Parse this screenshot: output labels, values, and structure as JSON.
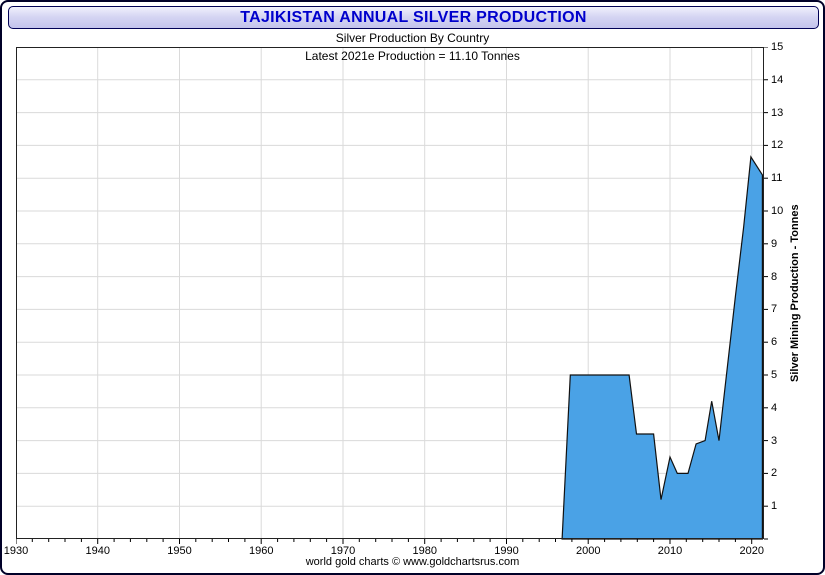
{
  "header": {
    "title": "TAJIKISTAN ANNUAL SILVER PRODUCTION"
  },
  "footer": {
    "credit": "world gold charts © www.goldchartsrus.com"
  },
  "colors": {
    "title_text": "#0000cc",
    "titlebar_border": "#000055",
    "frame_border": "#000028",
    "area_fill": "#4aa2e6",
    "area_line": "#111111",
    "grid": "#dadada",
    "axis": "#222222"
  },
  "chart_data": {
    "type": "area",
    "title": "TAJIKISTAN ANNUAL SILVER PRODUCTION",
    "subtitle": "Silver Production By Country",
    "annotation": "Latest 2021e Production = 11.10 Tonnes",
    "xlabel": "",
    "ylabel": "Silver Mining Production - Tonnes",
    "xlim": [
      1930,
      2021.5
    ],
    "ylim": [
      0,
      15
    ],
    "grid": true,
    "legend": "none",
    "x_ticks": [
      1930,
      1940,
      1950,
      1960,
      1970,
      1980,
      1990,
      2000,
      2010,
      2020
    ],
    "y_ticks": [
      1,
      2,
      3,
      4,
      5,
      6,
      7,
      8,
      9,
      10,
      11,
      12,
      13,
      14,
      15
    ],
    "latest_value_tonnes": 11.1,
    "latest_year": "2021e",
    "series": [
      {
        "name": "Tajikistan Annual Silver Production (Tonnes)",
        "points": [
          [
            1996.8,
            0.0
          ],
          [
            1997.8,
            5.0
          ],
          [
            2005.0,
            5.0
          ],
          [
            2005.9,
            3.2
          ],
          [
            2008.0,
            3.2
          ],
          [
            2008.9,
            1.2
          ],
          [
            2010.0,
            2.5
          ],
          [
            2010.9,
            2.0
          ],
          [
            2012.2,
            2.0
          ],
          [
            2013.2,
            2.9
          ],
          [
            2014.3,
            3.0
          ],
          [
            2015.1,
            4.2
          ],
          [
            2016.0,
            3.0
          ],
          [
            2017.0,
            5.2
          ],
          [
            2018.0,
            7.4
          ],
          [
            2019.0,
            9.5
          ],
          [
            2019.9,
            11.65
          ],
          [
            2021.3,
            11.1
          ]
        ]
      }
    ]
  }
}
